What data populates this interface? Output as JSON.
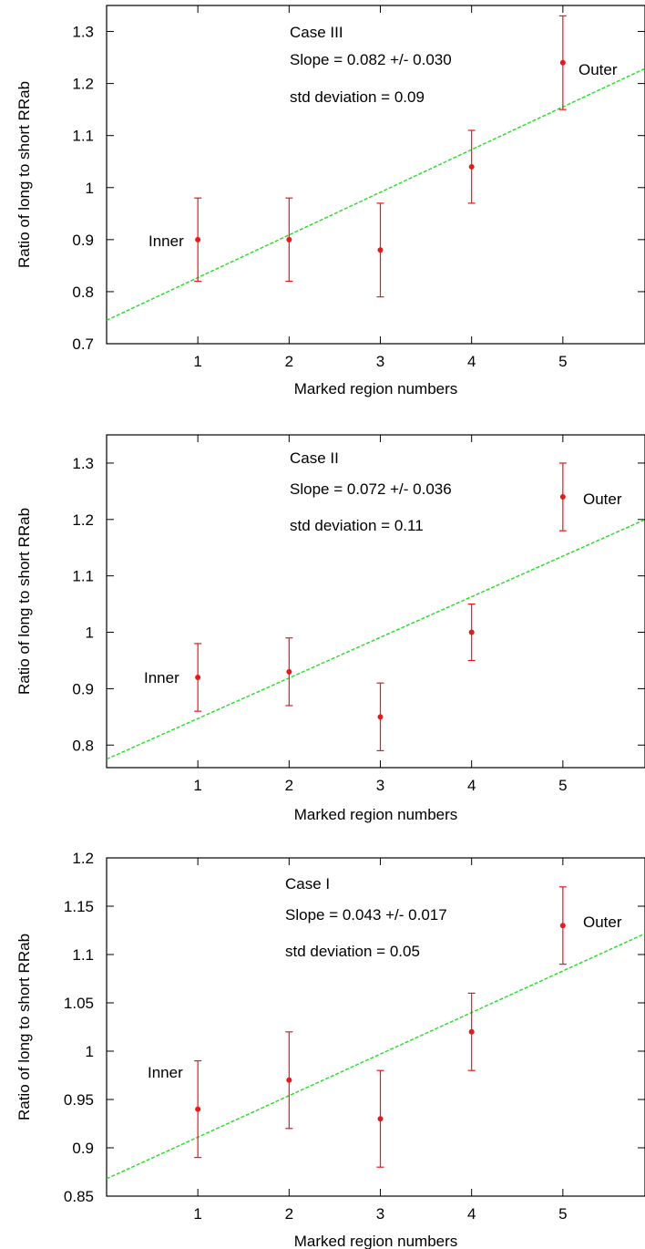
{
  "chart_data": [
    {
      "type": "scatter",
      "xlabel": "Marked region numbers",
      "ylabel": "Ratio of long to short RRab",
      "xlim": [
        0,
        5.9
      ],
      "ylim": [
        0.7,
        1.35
      ],
      "xticks": [
        1,
        2,
        3,
        4,
        5
      ],
      "yticks": [
        0.7,
        0.8,
        0.9,
        1.0,
        1.1,
        1.2,
        1.3
      ],
      "ytick_labels": [
        "0.7",
        "0.8",
        "0.9",
        "1",
        "1.1",
        "1.2",
        "1.3"
      ],
      "grid": false,
      "annotations": {
        "case": "Case III",
        "slope": "Slope = 0.082 +/- 0.030",
        "std": "std deviation = 0.09",
        "inner": "Inner",
        "outer": "Outer"
      },
      "series": [
        {
          "x": [
            1,
            2,
            3,
            4,
            5
          ],
          "y": [
            0.9,
            0.9,
            0.88,
            1.04,
            1.24
          ],
          "yerr": [
            0.08,
            0.08,
            0.09,
            0.07,
            0.09
          ],
          "color": "#e41a1c"
        }
      ],
      "fit_line": {
        "slope": 0.082,
        "intercept": 0.745,
        "color": "#22dd22",
        "style": "dashed"
      }
    },
    {
      "type": "scatter",
      "xlabel": "Marked region numbers",
      "ylabel": "Ratio of long to short RRab",
      "xlim": [
        0,
        5.9
      ],
      "ylim": [
        0.76,
        1.35
      ],
      "xticks": [
        1,
        2,
        3,
        4,
        5
      ],
      "yticks": [
        0.8,
        0.9,
        1.0,
        1.1,
        1.2,
        1.3
      ],
      "ytick_labels": [
        "0.8",
        "0.9",
        "1",
        "1.1",
        "1.2",
        "1.3"
      ],
      "grid": false,
      "annotations": {
        "case": "Case II",
        "slope": "Slope = 0.072 +/- 0.036",
        "std": "std deviation = 0.11",
        "inner": "Inner",
        "outer": "Outer"
      },
      "series": [
        {
          "x": [
            1,
            2,
            3,
            4,
            5
          ],
          "y": [
            0.92,
            0.93,
            0.85,
            1.0,
            1.24
          ],
          "yerr": [
            0.06,
            0.06,
            0.06,
            0.05,
            0.06
          ],
          "color": "#e41a1c"
        }
      ],
      "fit_line": {
        "slope": 0.072,
        "intercept": 0.775,
        "color": "#22dd22",
        "style": "dashed"
      }
    },
    {
      "type": "scatter",
      "xlabel": "Marked region numbers",
      "ylabel": "Ratio of long to short RRab",
      "xlim": [
        0,
        5.9
      ],
      "ylim": [
        0.85,
        1.2
      ],
      "xticks": [
        1,
        2,
        3,
        4,
        5
      ],
      "yticks": [
        0.85,
        0.9,
        0.95,
        1.0,
        1.05,
        1.1,
        1.15,
        1.2
      ],
      "ytick_labels": [
        "0.85",
        "0.9",
        "0.95",
        "1",
        "1.05",
        "1.1",
        "1.15",
        "1.2"
      ],
      "grid": false,
      "annotations": {
        "case": "Case I",
        "slope": "Slope = 0.043 +/- 0.017",
        "std": "std deviation = 0.05",
        "inner": "Inner",
        "outer": "Outer"
      },
      "series": [
        {
          "x": [
            1,
            2,
            3,
            4,
            5
          ],
          "y": [
            0.94,
            0.97,
            0.93,
            1.02,
            1.13
          ],
          "yerr": [
            0.05,
            0.05,
            0.05,
            0.04,
            0.04
          ],
          "color": "#e41a1c"
        }
      ],
      "fit_line": {
        "slope": 0.043,
        "intercept": 0.868,
        "color": "#22dd22",
        "style": "dashed"
      }
    }
  ]
}
